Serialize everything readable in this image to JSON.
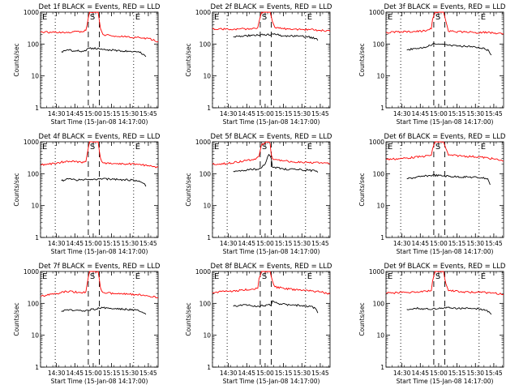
{
  "figure": {
    "xtick_labels": [
      "14:30",
      "14:45",
      "15:00",
      "15:15",
      "15:30",
      "15:45"
    ],
    "ytick_labels": [
      "1",
      "10",
      "100",
      "1000"
    ],
    "ylabel": "Counts/sec",
    "xlabel": "Start Time (15-Jan-08 14:17:00)",
    "colors": {
      "events": "#000000",
      "lld": "#ff0000"
    }
  },
  "chart_data": [
    {
      "type": "line",
      "title": "Det 1f BLACK = Events, RED = LLD",
      "xlabel": "Start Time (15-Jan-08 14:17:00)",
      "ylabel": "Counts/sec",
      "yscale": "log",
      "xlim": [
        "14:17",
        "15:53"
      ],
      "ylim": [
        1,
        1000
      ],
      "xticks": [
        "14:30",
        "14:45",
        "15:00",
        "15:15",
        "15:30",
        "15:45"
      ],
      "markers": [
        {
          "label": "E",
          "x": "14:17",
          "style": "dotted"
        },
        {
          "label": "",
          "x": "14:29",
          "style": "dotted"
        },
        {
          "label": "S",
          "x": "14:56",
          "style": "dashed"
        },
        {
          "label": "",
          "x": "15:05",
          "style": "dashed"
        },
        {
          "label": "E",
          "x": "15:33",
          "style": "dotted"
        }
      ],
      "series": [
        {
          "color": "#000000",
          "x": [
            "14:34",
            "14:40",
            "14:46",
            "14:51",
            "14:54",
            "14:55",
            "14:56",
            "15:05",
            "15:06",
            "15:10",
            "15:20",
            "15:30",
            "15:37",
            "15:41",
            "15:43"
          ],
          "values": [
            58,
            64,
            62,
            60,
            61,
            70,
            75,
            70,
            68,
            65,
            63,
            60,
            58,
            48,
            40
          ]
        },
        {
          "color": "#ff0000",
          "x": [
            "14:17",
            "14:30",
            "14:40",
            "14:50",
            "14:54",
            "14:55",
            "14:57",
            "15:04",
            "15:06",
            "15:08",
            "15:15",
            "15:25",
            "15:35",
            "15:45",
            "15:53"
          ],
          "values": [
            240,
            230,
            235,
            250,
            270,
            400,
            1000,
            1000,
            300,
            200,
            180,
            170,
            160,
            150,
            120
          ]
        }
      ]
    },
    {
      "type": "line",
      "title": "Det 2f BLACK = Events, RED = LLD",
      "xlabel": "Start Time (15-Jan-08 14:17:00)",
      "ylabel": "Counts/sec",
      "yscale": "log",
      "xlim": [
        "14:17",
        "15:53"
      ],
      "ylim": [
        1,
        1000
      ],
      "xticks": [
        "14:30",
        "14:45",
        "15:00",
        "15:15",
        "15:30",
        "15:45"
      ],
      "markers": [
        {
          "label": "E",
          "x": "14:17",
          "style": "dotted"
        },
        {
          "label": "",
          "x": "14:29",
          "style": "dotted"
        },
        {
          "label": "S",
          "x": "14:56",
          "style": "dashed"
        },
        {
          "label": "",
          "x": "15:05",
          "style": "dashed"
        },
        {
          "label": "E",
          "x": "15:33",
          "style": "dotted"
        }
      ],
      "series": [
        {
          "color": "#000000",
          "x": [
            "14:34",
            "14:45",
            "14:55",
            "15:05",
            "15:06",
            "15:15",
            "15:25",
            "15:35",
            "15:41",
            "15:43"
          ],
          "values": [
            170,
            180,
            190,
            200,
            210,
            180,
            175,
            170,
            150,
            130
          ]
        },
        {
          "color": "#ff0000",
          "x": [
            "14:17",
            "14:30",
            "14:45",
            "14:54",
            "14:55",
            "14:57",
            "15:04",
            "15:06",
            "15:08",
            "15:15",
            "15:30",
            "15:45",
            "15:53"
          ],
          "values": [
            300,
            290,
            300,
            330,
            500,
            1000,
            1000,
            500,
            330,
            300,
            290,
            270,
            250
          ]
        }
      ]
    },
    {
      "type": "line",
      "title": "Det 3f BLACK = Events, RED = LLD",
      "xlabel": "Start Time (15-Jan-08 14:17:00)",
      "ylabel": "Counts/sec",
      "yscale": "log",
      "xlim": [
        "14:17",
        "15:53"
      ],
      "ylim": [
        1,
        1000
      ],
      "xticks": [
        "14:30",
        "14:45",
        "15:00",
        "15:15",
        "15:30",
        "15:45"
      ],
      "markers": [
        {
          "label": "E",
          "x": "14:17",
          "style": "dotted"
        },
        {
          "label": "",
          "x": "14:29",
          "style": "dotted"
        },
        {
          "label": "S",
          "x": "14:56",
          "style": "dashed"
        },
        {
          "label": "",
          "x": "15:05",
          "style": "dashed"
        },
        {
          "label": "E",
          "x": "15:33",
          "style": "dotted"
        }
      ],
      "series": [
        {
          "color": "#000000",
          "x": [
            "14:34",
            "14:40",
            "14:48",
            "14:53",
            "14:55",
            "15:05",
            "15:10",
            "15:20",
            "15:30",
            "15:37",
            "15:41",
            "15:43"
          ],
          "values": [
            65,
            72,
            80,
            90,
            100,
            95,
            90,
            85,
            80,
            75,
            60,
            45
          ]
        },
        {
          "color": "#ff0000",
          "x": [
            "14:17",
            "14:30",
            "14:40",
            "14:50",
            "14:54",
            "14:55",
            "14:57",
            "15:04",
            "15:06",
            "15:08",
            "15:20",
            "15:30",
            "15:40",
            "15:53"
          ],
          "values": [
            230,
            240,
            250,
            260,
            300,
            600,
            1000,
            1000,
            500,
            250,
            240,
            230,
            230,
            210
          ]
        }
      ]
    },
    {
      "type": "line",
      "title": "Det 4f BLACK = Events, RED = LLD",
      "xlabel": "Start Time (15-Jan-08 14:17:00)",
      "ylabel": "Counts/sec",
      "yscale": "log",
      "xlim": [
        "14:17",
        "15:53"
      ],
      "ylim": [
        1,
        1000
      ],
      "xticks": [
        "14:30",
        "14:45",
        "15:00",
        "15:15",
        "15:30",
        "15:45"
      ],
      "markers": [
        {
          "label": "E",
          "x": "14:17",
          "style": "dotted"
        },
        {
          "label": "",
          "x": "14:29",
          "style": "dotted"
        },
        {
          "label": "S",
          "x": "14:56",
          "style": "dashed"
        },
        {
          "label": "",
          "x": "15:05",
          "style": "dashed"
        },
        {
          "label": "E",
          "x": "15:33",
          "style": "dotted"
        }
      ],
      "series": [
        {
          "color": "#000000",
          "x": [
            "14:34",
            "14:38",
            "14:45",
            "14:52",
            "14:55",
            "15:05",
            "15:08",
            "15:15",
            "15:25",
            "15:35",
            "15:41",
            "15:43"
          ],
          "values": [
            60,
            68,
            65,
            62,
            65,
            68,
            70,
            66,
            65,
            62,
            50,
            40
          ]
        },
        {
          "color": "#ff0000",
          "x": [
            "14:17",
            "14:30",
            "14:38",
            "14:50",
            "14:54",
            "14:55",
            "14:57",
            "15:04",
            "15:06",
            "15:08",
            "15:20",
            "15:35",
            "15:45",
            "15:53"
          ],
          "values": [
            190,
            210,
            250,
            230,
            240,
            400,
            1000,
            1000,
            300,
            220,
            210,
            200,
            180,
            160
          ]
        }
      ]
    },
    {
      "type": "line",
      "title": "Det 5f BLACK = Events, RED = LLD",
      "xlabel": "Start Time (15-Jan-08 14:17:00)",
      "ylabel": "Counts/sec",
      "yscale": "log",
      "xlim": [
        "14:17",
        "15:53"
      ],
      "ylim": [
        1,
        1000
      ],
      "xticks": [
        "14:30",
        "14:45",
        "15:00",
        "15:15",
        "15:30",
        "15:45"
      ],
      "markers": [
        {
          "label": "E",
          "x": "14:17",
          "style": "dotted"
        },
        {
          "label": "",
          "x": "14:29",
          "style": "dotted"
        },
        {
          "label": "S",
          "x": "14:56",
          "style": "dashed"
        },
        {
          "label": "",
          "x": "15:05",
          "style": "dashed"
        },
        {
          "label": "E",
          "x": "15:33",
          "style": "dotted"
        }
      ],
      "series": [
        {
          "color": "#000000",
          "x": [
            "14:34",
            "14:45",
            "14:55",
            "15:00",
            "15:03",
            "15:05",
            "15:06",
            "15:15",
            "15:25",
            "15:35",
            "15:41",
            "15:43"
          ],
          "values": [
            120,
            130,
            140,
            200,
            400,
            300,
            160,
            140,
            135,
            130,
            120,
            110
          ]
        },
        {
          "color": "#ff0000",
          "x": [
            "14:17",
            "14:30",
            "14:45",
            "14:52",
            "14:55",
            "14:57",
            "15:01",
            "15:04",
            "15:05",
            "15:06",
            "15:15",
            "15:30",
            "15:45",
            "15:53"
          ],
          "values": [
            200,
            210,
            260,
            280,
            350,
            800,
            1000,
            900,
            400,
            300,
            250,
            230,
            220,
            200
          ]
        }
      ]
    },
    {
      "type": "line",
      "title": "Det 6f BLACK = Events, RED = LLD",
      "xlabel": "Start Time (15-Jan-08 14:17:00)",
      "ylabel": "Counts/sec",
      "yscale": "log",
      "xlim": [
        "14:17",
        "15:53"
      ],
      "ylim": [
        1,
        1000
      ],
      "xticks": [
        "14:30",
        "14:45",
        "15:00",
        "15:15",
        "15:30",
        "15:45"
      ],
      "markers": [
        {
          "label": "E",
          "x": "14:17",
          "style": "dotted"
        },
        {
          "label": "",
          "x": "14:29",
          "style": "dotted"
        },
        {
          "label": "S",
          "x": "14:56",
          "style": "dashed"
        },
        {
          "label": "",
          "x": "15:05",
          "style": "dashed"
        },
        {
          "label": "E",
          "x": "15:33",
          "style": "dotted"
        }
      ],
      "series": [
        {
          "color": "#000000",
          "x": [
            "14:34",
            "14:45",
            "14:55",
            "15:05",
            "15:15",
            "15:25",
            "15:35",
            "15:40",
            "15:42"
          ],
          "values": [
            70,
            80,
            90,
            85,
            80,
            78,
            75,
            70,
            45
          ]
        },
        {
          "color": "#ff0000",
          "x": [
            "14:17",
            "14:30",
            "14:45",
            "14:54",
            "14:55",
            "14:57",
            "15:04",
            "15:06",
            "15:08",
            "15:20",
            "15:35",
            "15:45",
            "15:53"
          ],
          "values": [
            280,
            300,
            340,
            380,
            600,
            1000,
            1000,
            600,
            380,
            360,
            330,
            290,
            250
          ]
        }
      ]
    },
    {
      "type": "line",
      "title": "Det 7f BLACK = Events, RED = LLD",
      "xlabel": "Start Time (15-Jan-08 14:17:00)",
      "ylabel": "Counts/sec",
      "yscale": "log",
      "xlim": [
        "14:17",
        "15:53"
      ],
      "ylim": [
        1,
        1000
      ],
      "xticks": [
        "14:30",
        "14:45",
        "15:00",
        "15:15",
        "15:30",
        "15:45"
      ],
      "markers": [
        {
          "label": "E",
          "x": "14:17",
          "style": "dotted"
        },
        {
          "label": "",
          "x": "14:29",
          "style": "dotted"
        },
        {
          "label": "S",
          "x": "14:56",
          "style": "dashed"
        },
        {
          "label": "",
          "x": "15:05",
          "style": "dashed"
        },
        {
          "label": "E",
          "x": "15:33",
          "style": "dotted"
        }
      ],
      "series": [
        {
          "color": "#000000",
          "x": [
            "14:34",
            "14:38",
            "14:45",
            "14:52",
            "14:55",
            "15:05",
            "15:08",
            "15:15",
            "15:25",
            "15:35",
            "15:41",
            "15:43"
          ],
          "values": [
            55,
            62,
            60,
            58,
            62,
            70,
            72,
            68,
            65,
            62,
            50,
            45
          ]
        },
        {
          "color": "#ff0000",
          "x": [
            "14:17",
            "14:30",
            "14:38",
            "14:50",
            "14:54",
            "14:55",
            "14:57",
            "15:04",
            "15:06",
            "15:08",
            "15:20",
            "15:35",
            "15:45",
            "15:53"
          ],
          "values": [
            170,
            200,
            240,
            220,
            230,
            400,
            1000,
            1000,
            300,
            220,
            200,
            190,
            170,
            150
          ]
        }
      ]
    },
    {
      "type": "line",
      "title": "Det 8f BLACK = Events, RED = LLD",
      "xlabel": "Start Time (15-Jan-08 14:17:00)",
      "ylabel": "Counts/sec",
      "yscale": "log",
      "xlim": [
        "14:17",
        "15:53"
      ],
      "ylim": [
        1,
        1000
      ],
      "xticks": [
        "14:30",
        "14:45",
        "15:00",
        "15:15",
        "15:30",
        "15:45"
      ],
      "markers": [
        {
          "label": "E",
          "x": "14:17",
          "style": "dotted"
        },
        {
          "label": "",
          "x": "14:29",
          "style": "dotted"
        },
        {
          "label": "S",
          "x": "14:56",
          "style": "dashed"
        },
        {
          "label": "",
          "x": "15:05",
          "style": "dashed"
        },
        {
          "label": "E",
          "x": "15:33",
          "style": "dotted"
        }
      ],
      "series": [
        {
          "color": "#000000",
          "x": [
            "14:34",
            "14:40",
            "14:48",
            "14:55",
            "15:05",
            "15:06",
            "15:10",
            "15:20",
            "15:30",
            "15:37",
            "15:41",
            "15:43"
          ],
          "values": [
            80,
            90,
            85,
            80,
            90,
            120,
            100,
            90,
            85,
            80,
            70,
            50
          ]
        },
        {
          "color": "#ff0000",
          "x": [
            "14:17",
            "14:30",
            "14:40",
            "14:50",
            "14:54",
            "14:55",
            "14:57",
            "15:04",
            "15:06",
            "15:08",
            "15:20",
            "15:35",
            "15:45",
            "15:53"
          ],
          "values": [
            220,
            240,
            260,
            280,
            300,
            600,
            1000,
            1000,
            500,
            330,
            280,
            250,
            230,
            200
          ]
        }
      ]
    },
    {
      "type": "line",
      "title": "Det 9f BLACK = Events, RED = LLD",
      "xlabel": "Start Time (15-Jan-08 14:17:00)",
      "ylabel": "Counts/sec",
      "yscale": "log",
      "xlim": [
        "14:17",
        "15:53"
      ],
      "ylim": [
        1,
        1000
      ],
      "xticks": [
        "14:30",
        "14:45",
        "15:00",
        "15:15",
        "15:30",
        "15:45"
      ],
      "markers": [
        {
          "label": "E",
          "x": "14:17",
          "style": "dotted"
        },
        {
          "label": "",
          "x": "14:29",
          "style": "dotted"
        },
        {
          "label": "S",
          "x": "14:56",
          "style": "dashed"
        },
        {
          "label": "",
          "x": "15:05",
          "style": "dashed"
        },
        {
          "label": "E",
          "x": "15:33",
          "style": "dotted"
        }
      ],
      "series": [
        {
          "color": "#000000",
          "x": [
            "14:34",
            "14:40",
            "14:48",
            "14:55",
            "15:05",
            "15:10",
            "15:20",
            "15:30",
            "15:37",
            "15:41",
            "15:43"
          ],
          "values": [
            65,
            70,
            68,
            66,
            75,
            72,
            70,
            68,
            65,
            55,
            45
          ]
        },
        {
          "color": "#ff0000",
          "x": [
            "14:17",
            "14:30",
            "14:40",
            "14:50",
            "14:54",
            "14:55",
            "14:57",
            "15:04",
            "15:06",
            "15:08",
            "15:20",
            "15:35",
            "15:45",
            "15:53"
          ],
          "values": [
            210,
            220,
            230,
            240,
            250,
            500,
            1000,
            1000,
            400,
            250,
            230,
            220,
            210,
            190
          ]
        }
      ]
    }
  ]
}
